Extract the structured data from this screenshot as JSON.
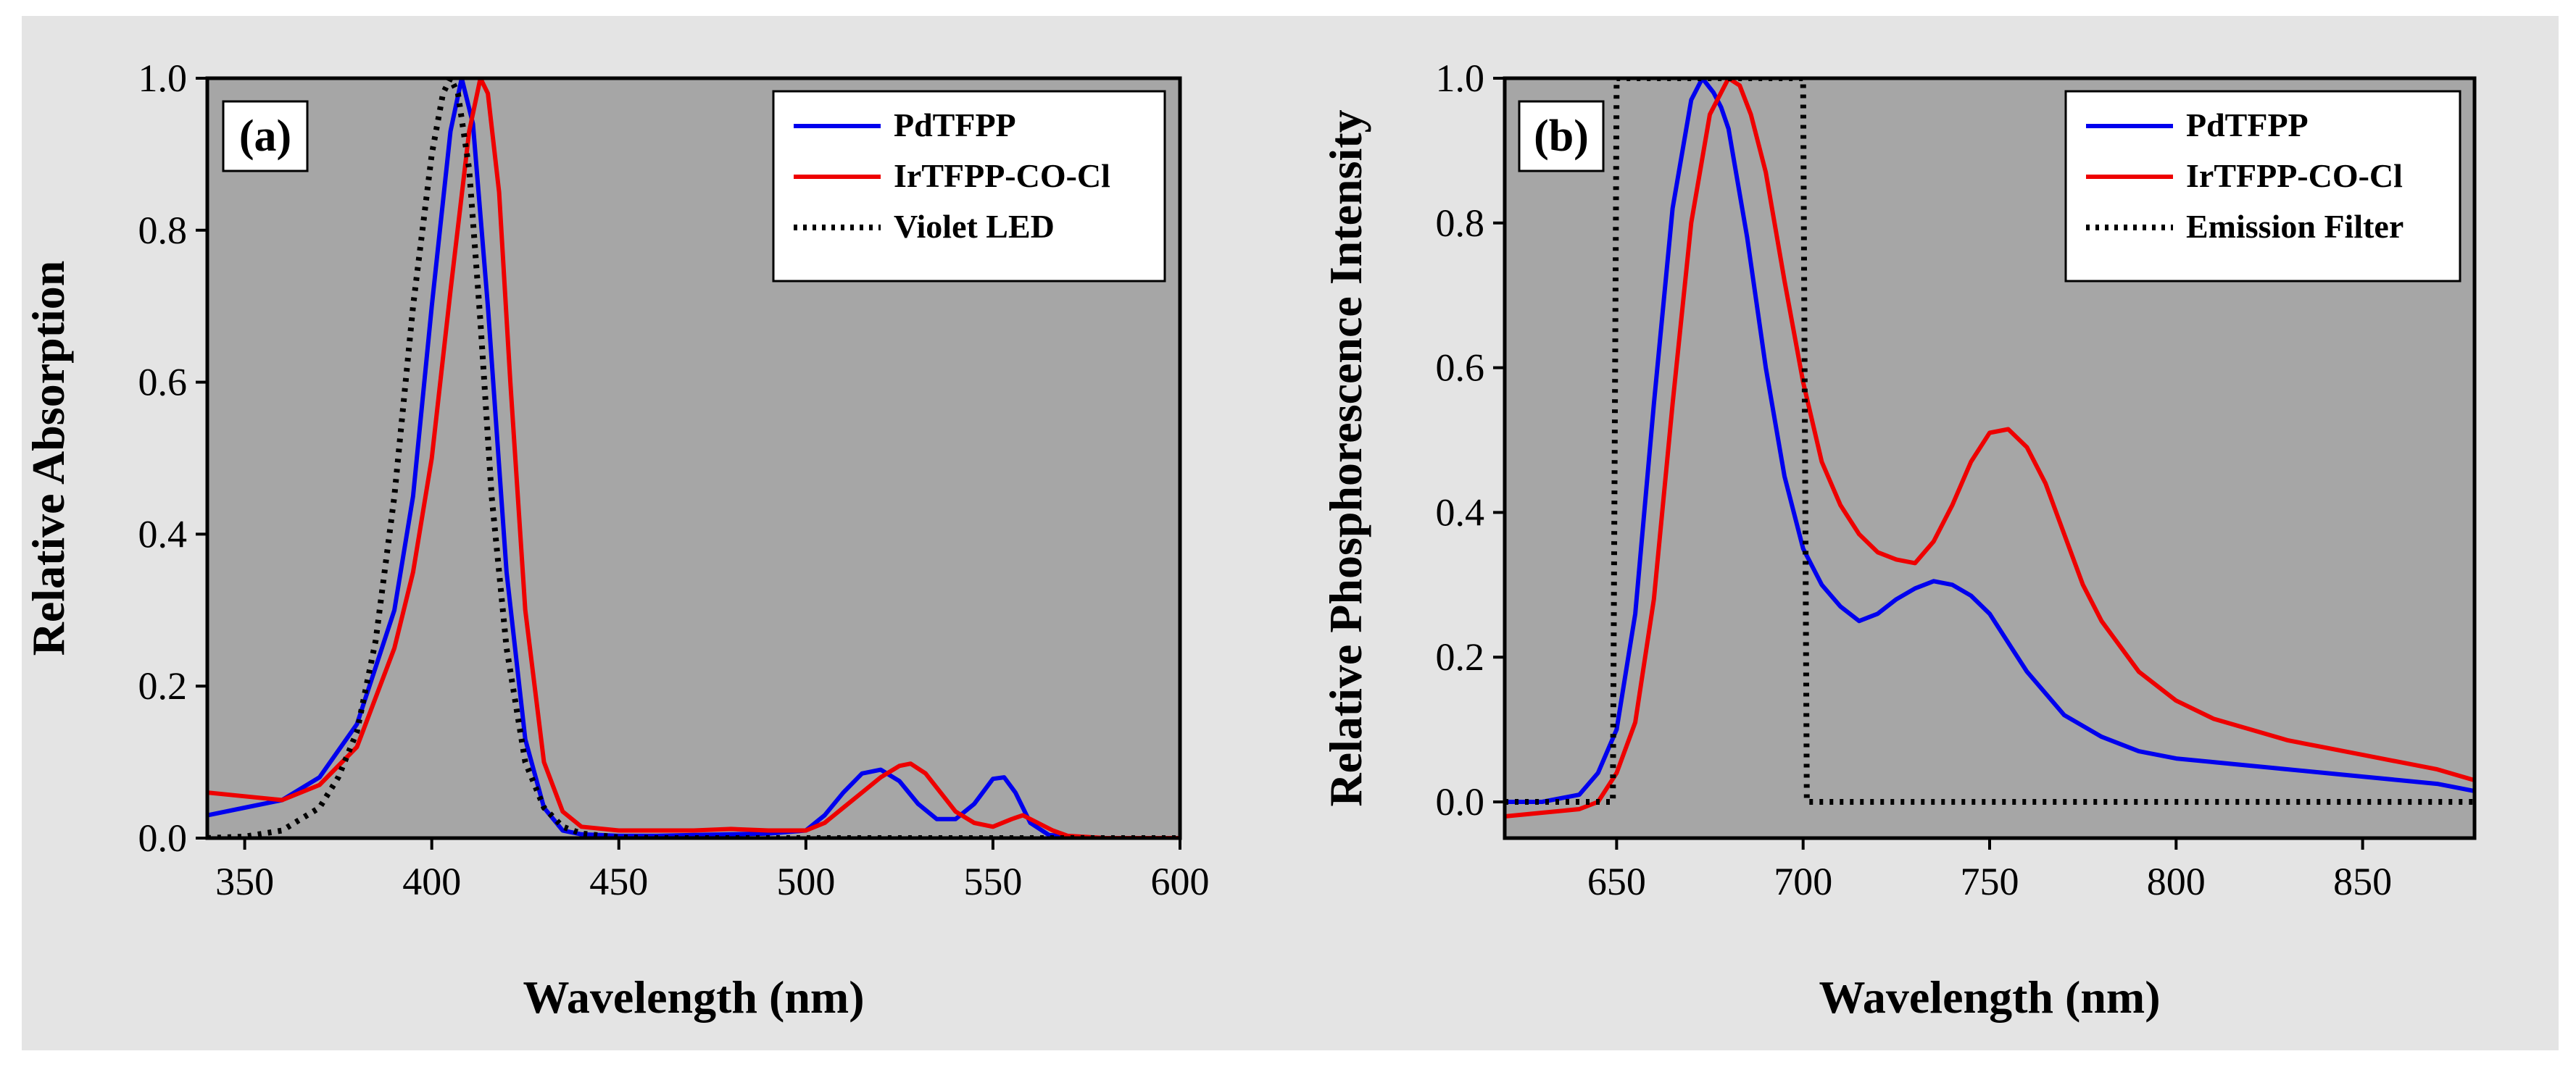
{
  "chart_data": [
    {
      "type": "line",
      "panel_label": "(a)",
      "xlabel": "Wavelength (nm)",
      "ylabel": "Relative Absorption",
      "xlim": [
        340,
        600
      ],
      "ylim": [
        0,
        1.0
      ],
      "xticks": [
        350,
        400,
        450,
        500,
        550,
        600
      ],
      "yticks": [
        0.0,
        0.2,
        0.4,
        0.6,
        0.8,
        1.0
      ],
      "yticklabels": [
        "0.0",
        "0.2",
        "0.4",
        "0.6",
        "0.8",
        "1.0"
      ],
      "legend_position": "top-right",
      "background": "#a6a6a6",
      "series": [
        {
          "name": "PdTFPP",
          "color": "#0000ee",
          "dash": "solid",
          "x": [
            340,
            350,
            360,
            370,
            380,
            390,
            395,
            400,
            405,
            408,
            411,
            415,
            420,
            425,
            430,
            435,
            440,
            450,
            460,
            470,
            480,
            490,
            500,
            505,
            510,
            515,
            520,
            525,
            530,
            535,
            540,
            545,
            550,
            553,
            556,
            560,
            565,
            570,
            580,
            600
          ],
          "y": [
            0.03,
            0.04,
            0.05,
            0.08,
            0.15,
            0.3,
            0.45,
            0.7,
            0.93,
            1.0,
            0.94,
            0.7,
            0.35,
            0.13,
            0.04,
            0.01,
            0.005,
            0.003,
            0.003,
            0.004,
            0.005,
            0.006,
            0.01,
            0.03,
            0.06,
            0.085,
            0.09,
            0.075,
            0.045,
            0.025,
            0.025,
            0.045,
            0.078,
            0.08,
            0.06,
            0.02,
            0.004,
            0.002,
            0.0,
            0.0
          ]
        },
        {
          "name": "IrTFPP-CO-Cl",
          "color": "#ee0000",
          "dash": "solid",
          "x": [
            340,
            350,
            360,
            370,
            380,
            390,
            395,
            400,
            405,
            410,
            413,
            415,
            418,
            421,
            425,
            430,
            435,
            440,
            450,
            460,
            470,
            480,
            490,
            500,
            505,
            510,
            515,
            520,
            525,
            528,
            532,
            536,
            540,
            545,
            550,
            555,
            558,
            562,
            566,
            570,
            580,
            600
          ],
          "y": [
            0.06,
            0.055,
            0.05,
            0.07,
            0.12,
            0.25,
            0.35,
            0.5,
            0.72,
            0.93,
            1.0,
            0.98,
            0.85,
            0.6,
            0.3,
            0.1,
            0.035,
            0.015,
            0.01,
            0.01,
            0.01,
            0.012,
            0.01,
            0.01,
            0.02,
            0.04,
            0.06,
            0.08,
            0.095,
            0.098,
            0.085,
            0.06,
            0.035,
            0.02,
            0.015,
            0.025,
            0.03,
            0.02,
            0.01,
            0.003,
            0.0,
            0.0
          ]
        },
        {
          "name": "Violet LED",
          "color": "#000000",
          "dash": "dotted",
          "x": [
            340,
            350,
            360,
            370,
            375,
            380,
            385,
            390,
            395,
            400,
            403,
            405,
            407,
            410,
            413,
            416,
            420,
            425,
            430,
            435,
            440,
            450,
            460,
            600
          ],
          "y": [
            0.0,
            0.002,
            0.01,
            0.04,
            0.08,
            0.14,
            0.26,
            0.45,
            0.7,
            0.9,
            0.98,
            1.0,
            0.98,
            0.88,
            0.68,
            0.45,
            0.25,
            0.1,
            0.04,
            0.015,
            0.006,
            0.001,
            0.0,
            0.0
          ]
        }
      ]
    },
    {
      "type": "line",
      "panel_label": "(b)",
      "xlabel": "Wavelength (nm)",
      "ylabel": "Relative Phosphorescence Intensity",
      "xlim": [
        620,
        880
      ],
      "ylim": [
        -0.05,
        1.0
      ],
      "xticks": [
        650,
        700,
        750,
        800,
        850
      ],
      "yticks": [
        0.0,
        0.2,
        0.4,
        0.6,
        0.8,
        1.0
      ],
      "yticklabels": [
        "0.0",
        "0.2",
        "0.4",
        "0.6",
        "0.8",
        "1.0"
      ],
      "legend_position": "top-right",
      "background": "#a6a6a6",
      "series": [
        {
          "name": "PdTFPP",
          "color": "#0000ee",
          "dash": "solid",
          "x": [
            620,
            630,
            640,
            645,
            650,
            655,
            660,
            665,
            670,
            673,
            676,
            678,
            680,
            685,
            690,
            695,
            700,
            705,
            710,
            715,
            720,
            725,
            730,
            735,
            740,
            745,
            750,
            755,
            760,
            765,
            770,
            780,
            790,
            800,
            810,
            820,
            830,
            840,
            850,
            860,
            870,
            880
          ],
          "y": [
            0.0,
            0.0,
            0.01,
            0.04,
            0.1,
            0.26,
            0.55,
            0.82,
            0.97,
            1.0,
            0.98,
            0.96,
            0.93,
            0.78,
            0.6,
            0.45,
            0.35,
            0.3,
            0.27,
            0.25,
            0.26,
            0.28,
            0.295,
            0.305,
            0.3,
            0.285,
            0.26,
            0.22,
            0.18,
            0.15,
            0.12,
            0.09,
            0.07,
            0.06,
            0.055,
            0.05,
            0.045,
            0.04,
            0.035,
            0.03,
            0.025,
            0.015
          ]
        },
        {
          "name": "IrTFPP-CO-Cl",
          "color": "#ee0000",
          "dash": "solid",
          "x": [
            620,
            630,
            640,
            645,
            650,
            655,
            660,
            665,
            670,
            675,
            680,
            683,
            686,
            690,
            695,
            700,
            705,
            710,
            715,
            720,
            725,
            730,
            735,
            740,
            745,
            750,
            755,
            760,
            765,
            770,
            775,
            780,
            790,
            800,
            810,
            820,
            830,
            840,
            850,
            860,
            870,
            880
          ],
          "y": [
            -0.02,
            -0.015,
            -0.01,
            0.0,
            0.04,
            0.11,
            0.28,
            0.55,
            0.8,
            0.95,
            1.0,
            0.99,
            0.95,
            0.87,
            0.72,
            0.58,
            0.47,
            0.41,
            0.37,
            0.345,
            0.335,
            0.33,
            0.36,
            0.41,
            0.47,
            0.51,
            0.515,
            0.49,
            0.44,
            0.37,
            0.3,
            0.25,
            0.18,
            0.14,
            0.115,
            0.1,
            0.085,
            0.075,
            0.065,
            0.055,
            0.045,
            0.03
          ]
        },
        {
          "name": "Emission Filter",
          "color": "#000000",
          "dash": "dotted",
          "x": [
            620,
            649,
            650,
            700,
            701,
            880
          ],
          "y": [
            0.0,
            0.0,
            1.0,
            1.0,
            0.0,
            0.0
          ]
        }
      ]
    }
  ]
}
